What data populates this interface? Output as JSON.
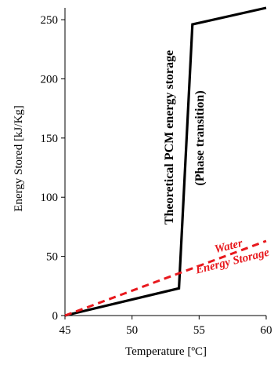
{
  "chart_data": {
    "type": "line",
    "title": "",
    "xlabel": "Temperature [ºC]",
    "ylabel": "Energy Stored [kJ/Kg]",
    "xlim": [
      45,
      60
    ],
    "ylim": [
      0,
      260
    ],
    "xticks": [
      45,
      50,
      55,
      60
    ],
    "yticks": [
      0,
      50,
      100,
      150,
      200,
      250
    ],
    "grid": false,
    "series": [
      {
        "name": "Theoretical PCM energy storage",
        "color": "#000000",
        "style": "solid",
        "points": [
          [
            45,
            0
          ],
          [
            53.5,
            23
          ],
          [
            54.5,
            246
          ],
          [
            60,
            260
          ]
        ]
      },
      {
        "name": "Water Energy Storage",
        "color": "#e8191e",
        "style": "dashed",
        "points": [
          [
            45,
            0
          ],
          [
            60,
            63
          ]
        ]
      }
    ],
    "annotations": [
      {
        "id": "pcm-label",
        "lines": [
          "Theoretical PCM energy storage",
          "(Phase transition)"
        ],
        "color": "#000000",
        "rotation": -90
      },
      {
        "id": "water-label",
        "lines": [
          "Water",
          "Energy Storage"
        ],
        "color": "#e8191e",
        "rotation": -14
      }
    ]
  }
}
